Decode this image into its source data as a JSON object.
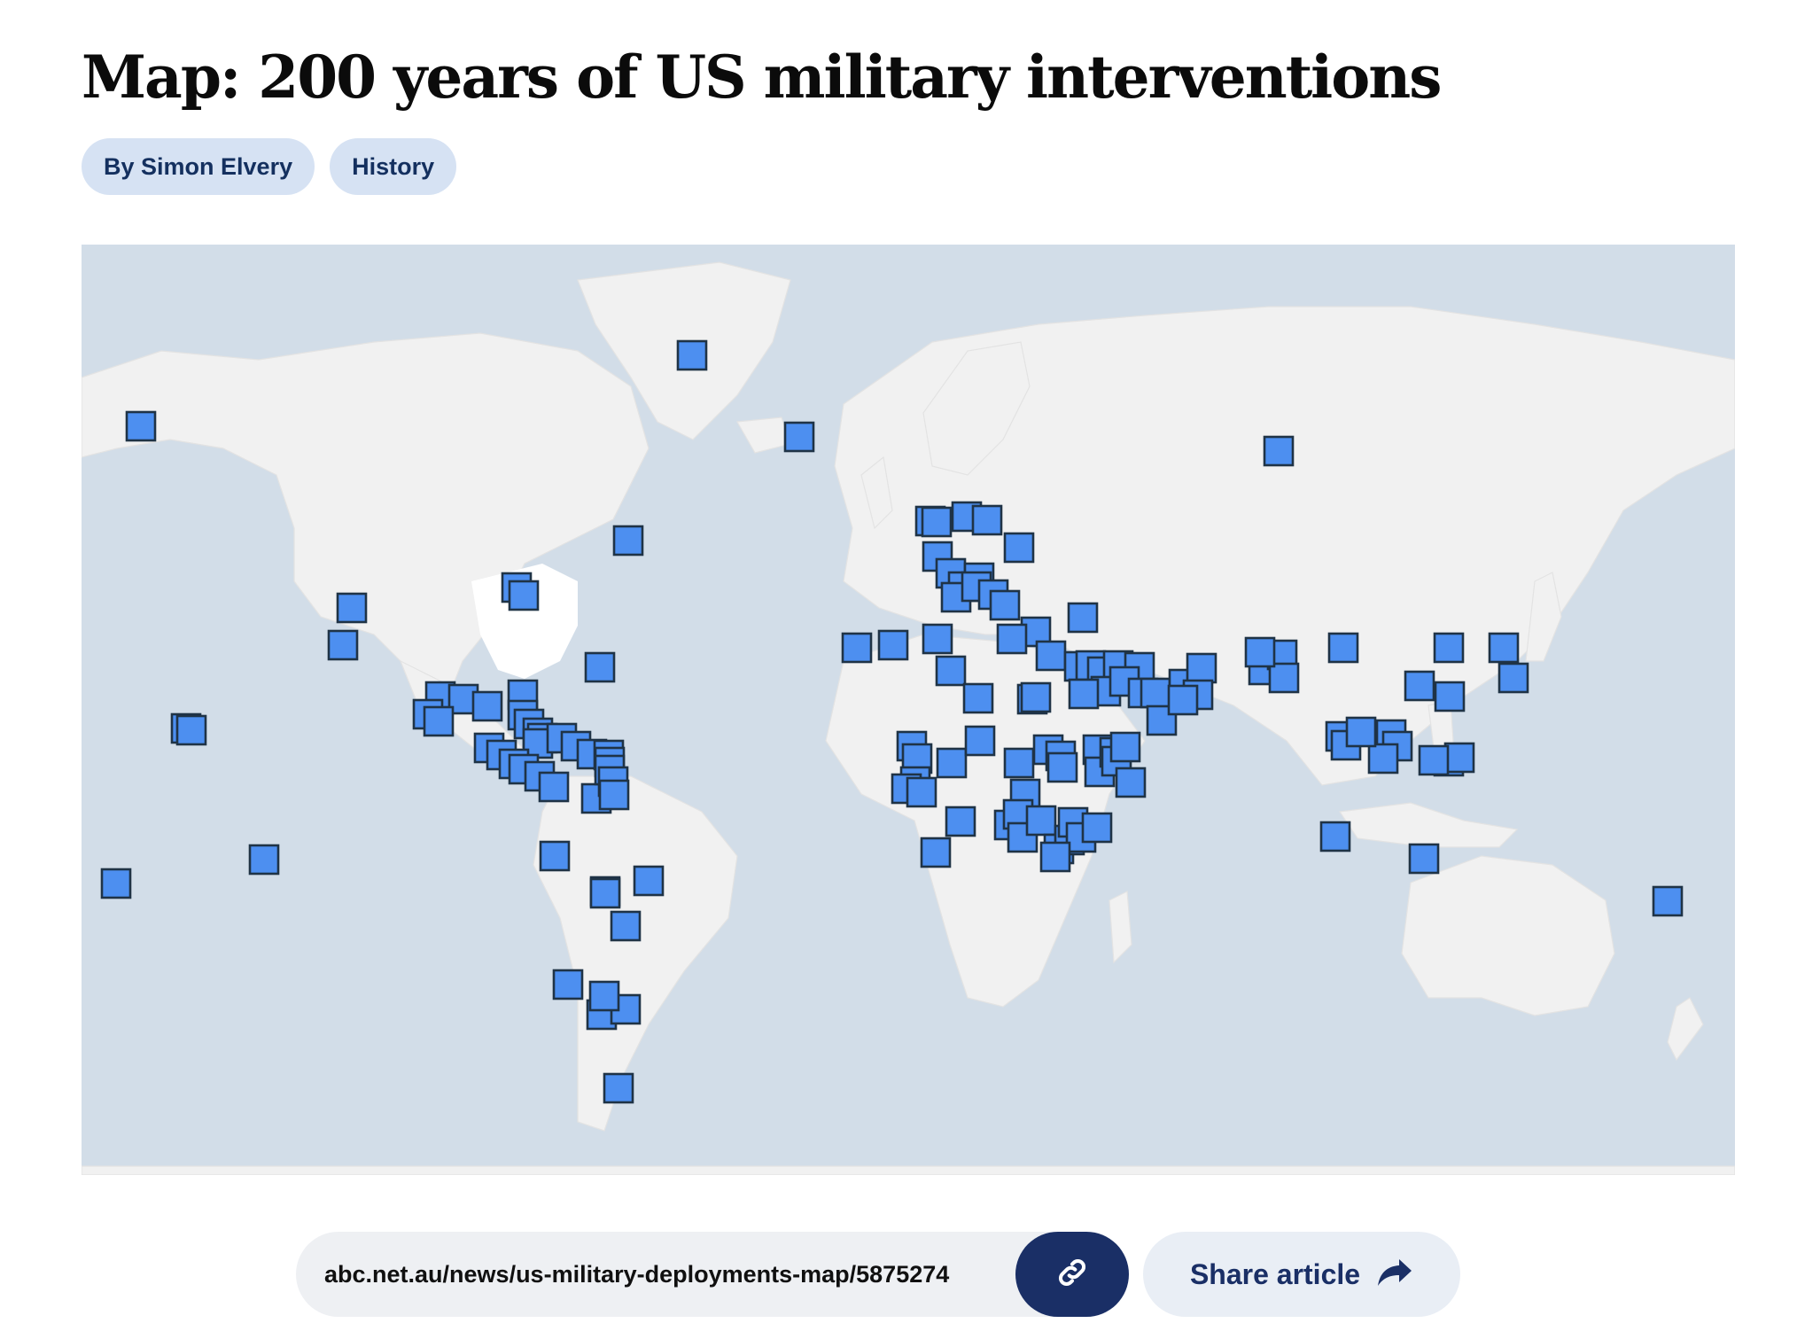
{
  "article": {
    "title": "Map: 200 years of US military interventions",
    "tags": [
      {
        "label": "By Simon Elvery"
      },
      {
        "label": "History"
      }
    ]
  },
  "map": {
    "marker_color": "#4d8ff0",
    "marker_border": "#1f3346",
    "land_color": "#f1f1f1",
    "water_color": "#d2dde8",
    "highlight_region": "United States"
  },
  "share": {
    "url": "abc.net.au/news/us-military-deployments-map/5875274",
    "copy_icon": "link-icon",
    "share_label": "Share article",
    "share_icon": "share-arrow-icon"
  }
}
